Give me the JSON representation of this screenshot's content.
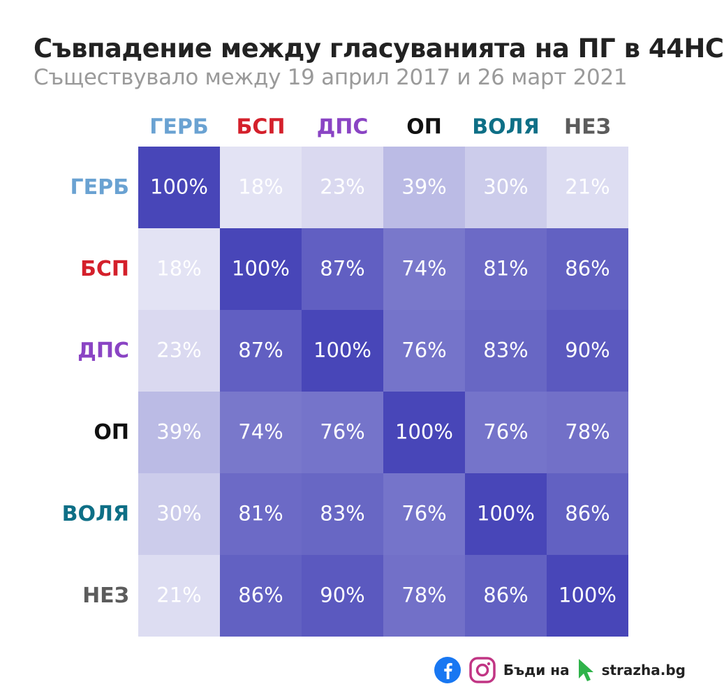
{
  "header": {
    "title": "Съвпадение между гласуванията на ПГ в 44НС",
    "subtitle": "Съществувало между 19 април 2017 и 26 март 2021"
  },
  "chart_data": {
    "type": "heatmap",
    "title": "Съвпадение между гласуванията на ПГ в 44НС",
    "subtitle": "Съществувало между 19 април 2017 и 26 март 2021",
    "categories": [
      "ГЕРБ",
      "БСП",
      "ДПС",
      "ОП",
      "ВОЛЯ",
      "НЕЗ"
    ],
    "category_colors": [
      "#6aa2d2",
      "#d4202b",
      "#8a44c4",
      "#111111",
      "#0e6f86",
      "#5c5c5c"
    ],
    "values": [
      [
        100,
        18,
        23,
        39,
        30,
        21
      ],
      [
        18,
        100,
        87,
        74,
        81,
        86
      ],
      [
        23,
        87,
        100,
        76,
        83,
        90
      ],
      [
        39,
        74,
        76,
        100,
        76,
        78
      ],
      [
        30,
        81,
        83,
        76,
        100,
        86
      ],
      [
        21,
        86,
        90,
        78,
        86,
        100
      ]
    ],
    "value_suffix": "%",
    "color_scale": {
      "low": "#e3e3f4",
      "high": "#4846b8"
    },
    "cell_text_color": "#ffffff"
  },
  "footer": {
    "cta_text": "Бъди на",
    "site": "strazha.bg",
    "social_icons": [
      "facebook-icon",
      "instagram-icon"
    ],
    "facebook_color": "#1877f2",
    "instagram_color": "#c13584",
    "cursor_color": "#2fb34a"
  }
}
